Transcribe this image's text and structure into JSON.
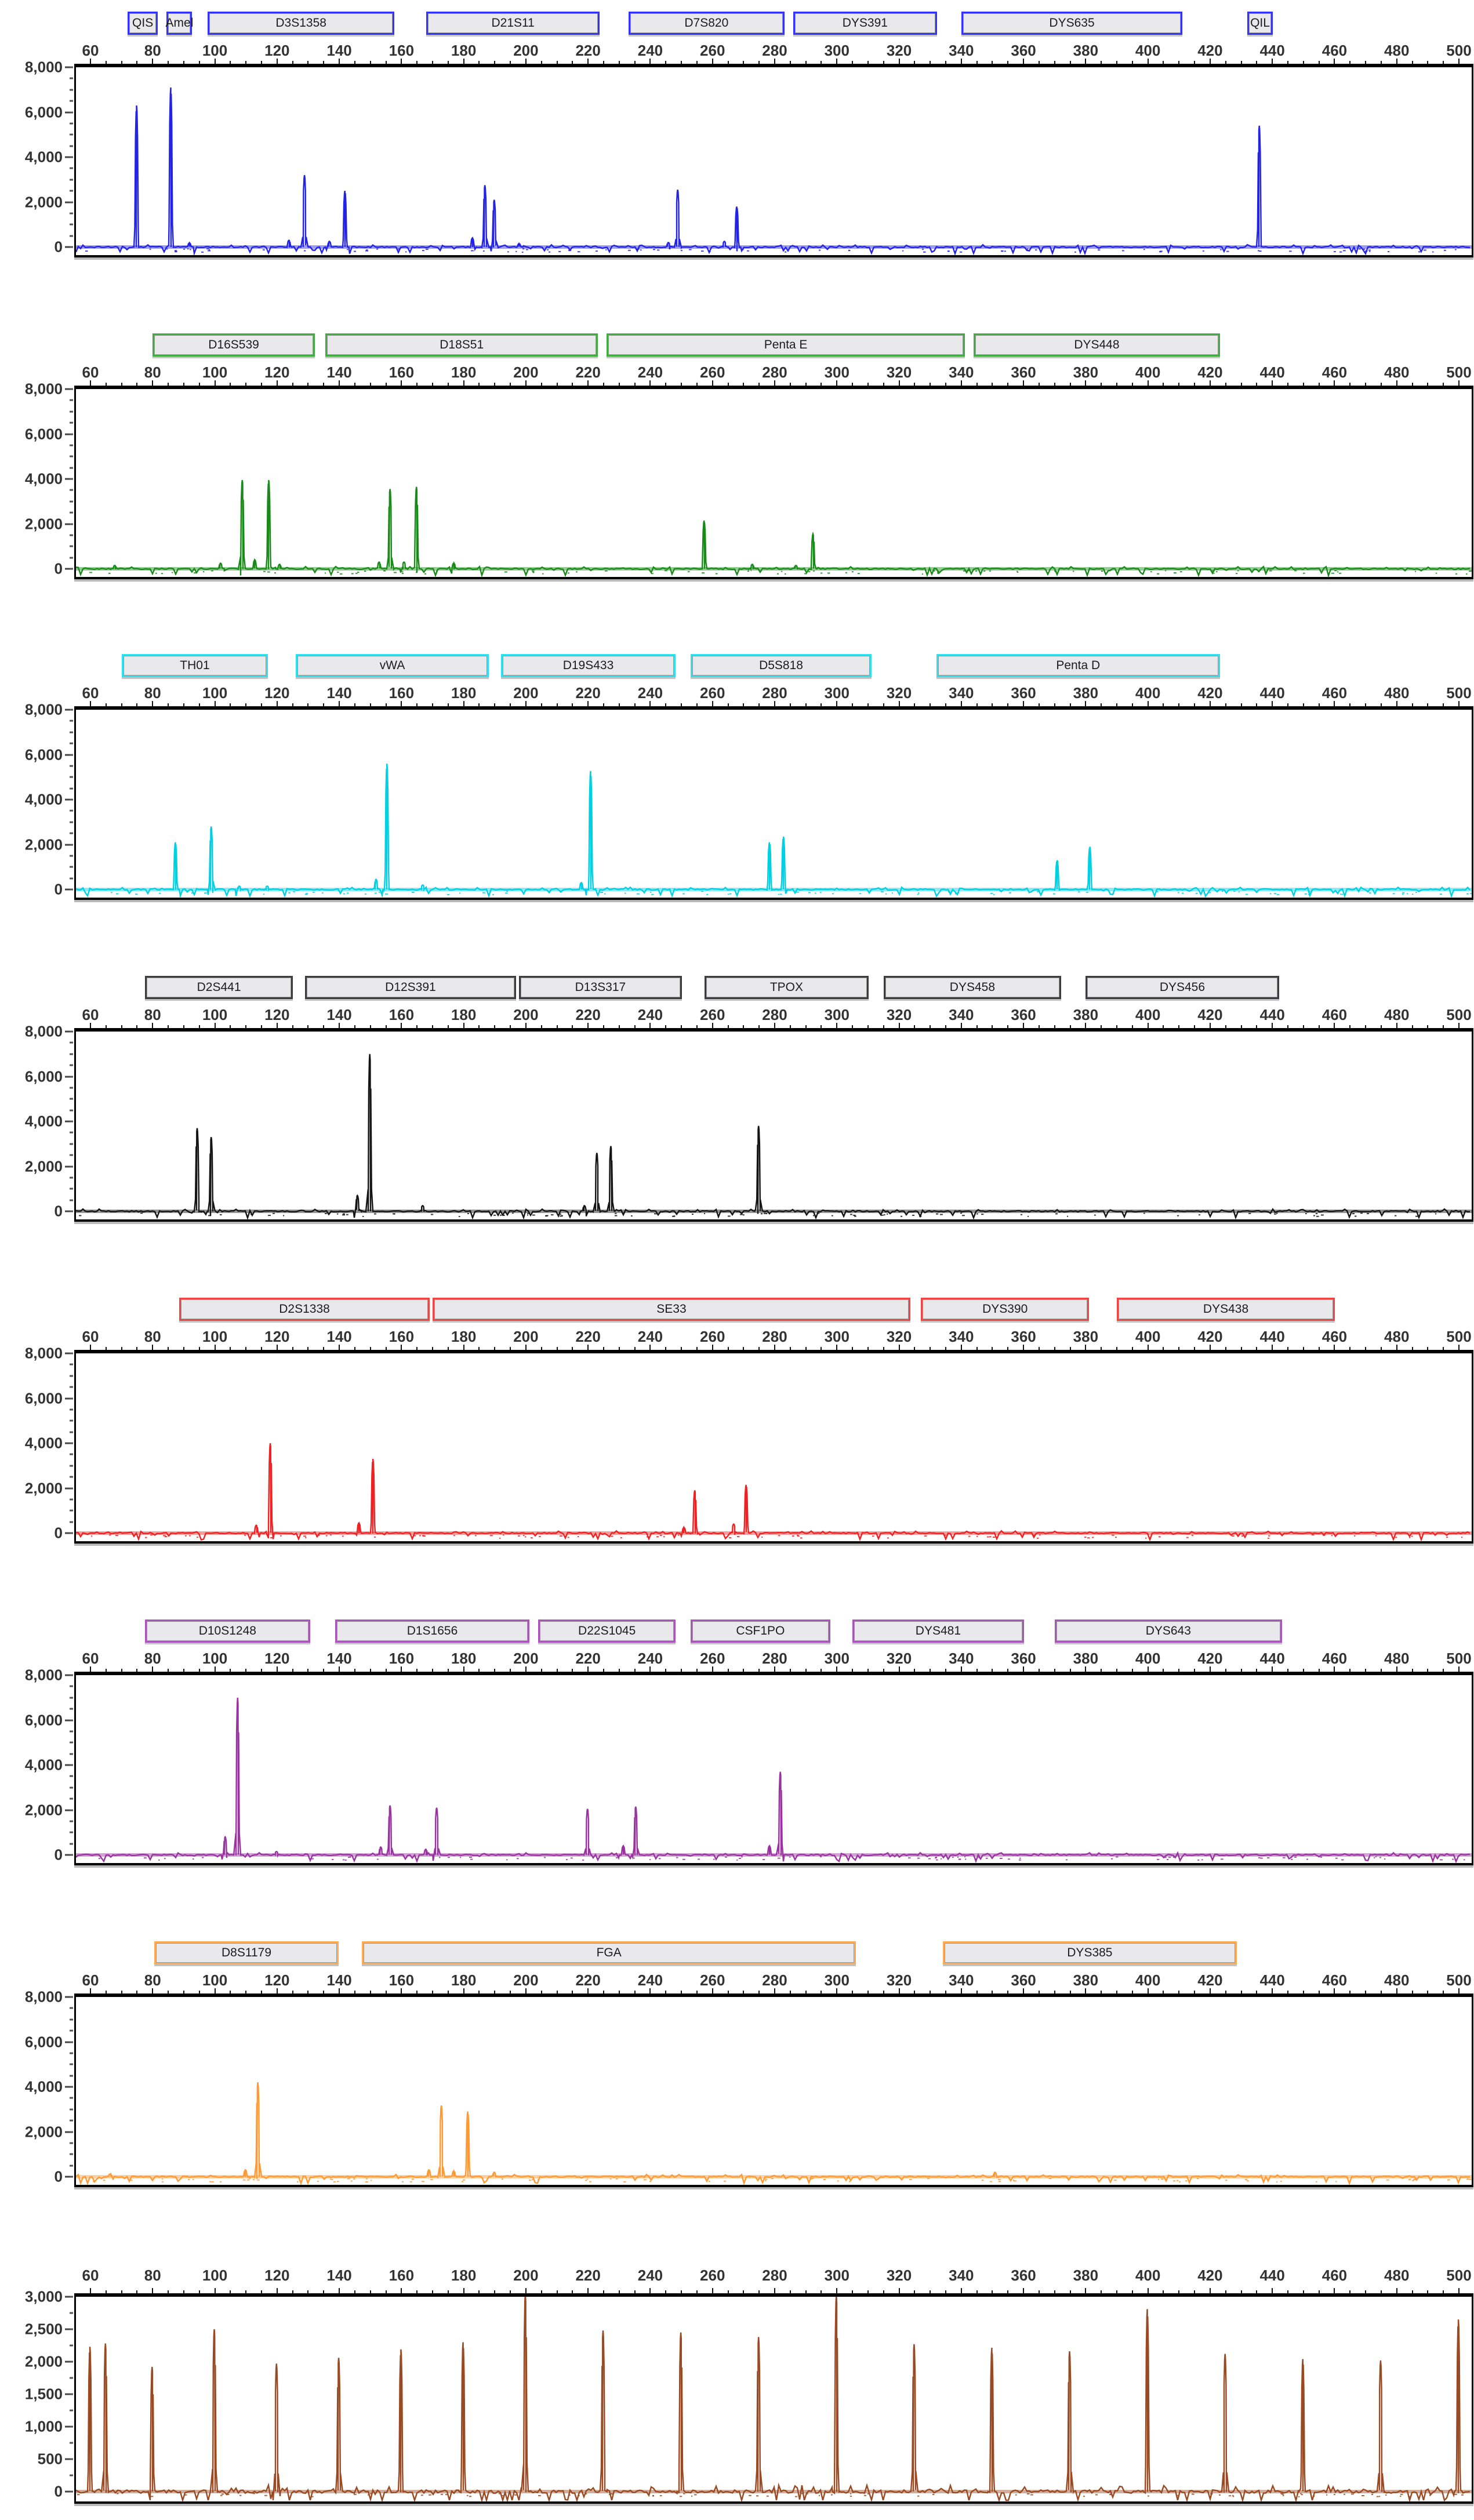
{
  "view": {
    "description": "Multi-channel STR electropherogram",
    "bp_start": 60,
    "bp_end": 500
  },
  "x_axis": {
    "tick_step": 20,
    "minor_step": 5,
    "ticks": [
      60,
      80,
      100,
      120,
      140,
      160,
      180,
      200,
      220,
      240,
      260,
      280,
      300,
      320,
      340,
      360,
      380,
      400,
      420,
      440,
      460,
      480,
      500
    ]
  },
  "chart_data": [
    {
      "type": "line",
      "name": "blue-channel",
      "trace_color": "#2323E6",
      "box_border": "#3333FF",
      "y_max": 8000,
      "y_minor_step": 500,
      "y_ticks": [
        {
          "label": "8,000",
          "value": 8000
        },
        {
          "label": "6,000",
          "value": 6000
        },
        {
          "label": "4,000",
          "value": 4000
        },
        {
          "label": "2,000",
          "value": 2000
        },
        {
          "label": "0",
          "value": 0
        }
      ],
      "markers": [
        {
          "label": "QIS",
          "start_bp": 72,
          "end_bp": 80.5
        },
        {
          "label": "Amel",
          "start_bp": 84.5,
          "end_bp": 91.6
        },
        {
          "label": "D3S1358",
          "start_bp": 97.7,
          "end_bp": 156.6
        },
        {
          "label": "D21S11",
          "start_bp": 168,
          "end_bp": 222.6
        },
        {
          "label": "D7S820",
          "start_bp": 233,
          "end_bp": 282
        },
        {
          "label": "DYS391",
          "start_bp": 286,
          "end_bp": 331
        },
        {
          "label": "DYS635",
          "start_bp": 340,
          "end_bp": 410
        },
        {
          "label": "QIL",
          "start_bp": 432,
          "end_bp": 439
        }
      ],
      "peaks": [
        [
          75,
          6300
        ],
        [
          86,
          7100
        ],
        [
          92,
          180
        ],
        [
          124,
          300
        ],
        [
          129,
          3200
        ],
        [
          137,
          250
        ],
        [
          142,
          2500
        ],
        [
          183,
          400
        ],
        [
          187,
          2750
        ],
        [
          190,
          2100
        ],
        [
          198,
          150
        ],
        [
          246,
          200
        ],
        [
          249,
          2550
        ],
        [
          264,
          250
        ],
        [
          268,
          1800
        ],
        [
          436,
          5400
        ]
      ]
    },
    {
      "type": "line",
      "name": "green-channel",
      "trace_color": "#178A17",
      "box_border": "#3FAE3F",
      "y_max": 8000,
      "y_minor_step": 500,
      "y_ticks": [
        {
          "label": "8,000",
          "value": 8000
        },
        {
          "label": "6,000",
          "value": 6000
        },
        {
          "label": "4,000",
          "value": 4000
        },
        {
          "label": "2,000",
          "value": 2000
        },
        {
          "label": "0",
          "value": 0
        }
      ],
      "markers": [
        {
          "label": "D16S539",
          "start_bp": 80,
          "end_bp": 131
        },
        {
          "label": "D18S51",
          "start_bp": 135.6,
          "end_bp": 222
        },
        {
          "label": "Penta E",
          "start_bp": 226,
          "end_bp": 340
        },
        {
          "label": "DYS448",
          "start_bp": 344,
          "end_bp": 422
        }
      ],
      "peaks": [
        [
          68,
          150
        ],
        [
          102,
          250
        ],
        [
          109,
          3950
        ],
        [
          113,
          400
        ],
        [
          117.5,
          3950
        ],
        [
          121,
          200
        ],
        [
          153,
          300
        ],
        [
          156.5,
          3550
        ],
        [
          161,
          300
        ],
        [
          165,
          3650
        ],
        [
          177,
          250
        ],
        [
          257.5,
          2150
        ],
        [
          273,
          200
        ],
        [
          287,
          150
        ],
        [
          292.5,
          1550
        ]
      ]
    },
    {
      "type": "line",
      "name": "cyan-channel",
      "trace_color": "#00D0E4",
      "box_border": "#2EE0F0",
      "y_max": 8000,
      "y_minor_step": 500,
      "y_ticks": [
        {
          "label": "8,000",
          "value": 8000
        },
        {
          "label": "6,000",
          "value": 6000
        },
        {
          "label": "4,000",
          "value": 4000
        },
        {
          "label": "2,000",
          "value": 2000
        },
        {
          "label": "0",
          "value": 0
        }
      ],
      "markers": [
        {
          "label": "TH01",
          "start_bp": 70,
          "end_bp": 116
        },
        {
          "label": "vWA",
          "start_bp": 126,
          "end_bp": 187
        },
        {
          "label": "D19S433",
          "start_bp": 192,
          "end_bp": 247
        },
        {
          "label": "D5S818",
          "start_bp": 253,
          "end_bp": 310
        },
        {
          "label": "Penta D",
          "start_bp": 332,
          "end_bp": 422
        }
      ],
      "peaks": [
        [
          87.5,
          2100
        ],
        [
          99,
          2800
        ],
        [
          108,
          150
        ],
        [
          117,
          150
        ],
        [
          152,
          450
        ],
        [
          155.5,
          5600
        ],
        [
          167,
          200
        ],
        [
          218,
          300
        ],
        [
          221,
          5270
        ],
        [
          278.5,
          2100
        ],
        [
          283,
          2350
        ],
        [
          371,
          1300
        ],
        [
          381.5,
          1900
        ]
      ]
    },
    {
      "type": "line",
      "name": "black-channel",
      "trace_color": "#141414",
      "box_border": "#3C3C3C",
      "y_max": 8000,
      "y_minor_step": 500,
      "y_ticks": [
        {
          "label": "8,000",
          "value": 8000
        },
        {
          "label": "6,000",
          "value": 6000
        },
        {
          "label": "4,000",
          "value": 4000
        },
        {
          "label": "2,000",
          "value": 2000
        },
        {
          "label": "0",
          "value": 0
        }
      ],
      "markers": [
        {
          "label": "D2S441",
          "start_bp": 77.5,
          "end_bp": 124
        },
        {
          "label": "D12S391",
          "start_bp": 129,
          "end_bp": 195.7
        },
        {
          "label": "D13S317",
          "start_bp": 197.8,
          "end_bp": 249
        },
        {
          "label": "TPOX",
          "start_bp": 257.5,
          "end_bp": 309
        },
        {
          "label": "DYS458",
          "start_bp": 315,
          "end_bp": 371
        },
        {
          "label": "DYS456",
          "start_bp": 380,
          "end_bp": 441
        }
      ],
      "peaks": [
        [
          94.5,
          3700
        ],
        [
          99,
          3300
        ],
        [
          146,
          700
        ],
        [
          150,
          7000
        ],
        [
          167,
          250
        ],
        [
          219,
          250
        ],
        [
          223,
          2600
        ],
        [
          227.5,
          2900
        ],
        [
          275,
          3800
        ]
      ]
    },
    {
      "type": "line",
      "name": "red-channel",
      "trace_color": "#EE2222",
      "box_border": "#F04545",
      "y_max": 8000,
      "y_minor_step": 500,
      "y_ticks": [
        {
          "label": "8,000",
          "value": 8000
        },
        {
          "label": "6,000",
          "value": 6000
        },
        {
          "label": "4,000",
          "value": 4000
        },
        {
          "label": "2,000",
          "value": 2000
        },
        {
          "label": "0",
          "value": 0
        }
      ],
      "markers": [
        {
          "label": "D2S1338",
          "start_bp": 88.5,
          "end_bp": 168
        },
        {
          "label": "SE33",
          "start_bp": 170,
          "end_bp": 322.5
        },
        {
          "label": "DYS390",
          "start_bp": 327,
          "end_bp": 380
        },
        {
          "label": "DYS438",
          "start_bp": 390,
          "end_bp": 459
        }
      ],
      "peaks": [
        [
          113.5,
          350
        ],
        [
          118,
          4000
        ],
        [
          146.5,
          450
        ],
        [
          151,
          3300
        ],
        [
          251,
          250
        ],
        [
          254.5,
          1900
        ],
        [
          267,
          400
        ],
        [
          271,
          2150
        ]
      ]
    },
    {
      "type": "line",
      "name": "purple-channel",
      "trace_color": "#9933A0",
      "box_border": "#AA55BB",
      "y_max": 8000,
      "y_minor_step": 500,
      "y_ticks": [
        {
          "label": "8,000",
          "value": 8000
        },
        {
          "label": "6,000",
          "value": 6000
        },
        {
          "label": "4,000",
          "value": 4000
        },
        {
          "label": "2,000",
          "value": 2000
        },
        {
          "label": "0",
          "value": 0
        }
      ],
      "markers": [
        {
          "label": "D10S1248",
          "start_bp": 77.5,
          "end_bp": 129.5
        },
        {
          "label": "D1S1656",
          "start_bp": 138.7,
          "end_bp": 200
        },
        {
          "label": "D22S1045",
          "start_bp": 204,
          "end_bp": 247
        },
        {
          "label": "CSF1PO",
          "start_bp": 253,
          "end_bp": 296.7
        },
        {
          "label": "DYS481",
          "start_bp": 305,
          "end_bp": 359
        },
        {
          "label": "DYS643",
          "start_bp": 370,
          "end_bp": 442
        }
      ],
      "peaks": [
        [
          103.5,
          800
        ],
        [
          107.5,
          7000
        ],
        [
          120,
          150
        ],
        [
          153.5,
          350
        ],
        [
          156.5,
          2200
        ],
        [
          168,
          250
        ],
        [
          171.5,
          2100
        ],
        [
          220,
          2050
        ],
        [
          231.5,
          400
        ],
        [
          235.5,
          2150
        ],
        [
          278.5,
          400
        ],
        [
          282,
          3700
        ]
      ]
    },
    {
      "type": "line",
      "name": "orange-channel",
      "trace_color": "#FF9933",
      "box_border": "#FFAA55",
      "y_max": 8000,
      "y_minor_step": 500,
      "y_ticks": [
        {
          "label": "8,000",
          "value": 8000
        },
        {
          "label": "6,000",
          "value": 6000
        },
        {
          "label": "4,000",
          "value": 4000
        },
        {
          "label": "2,000",
          "value": 2000
        },
        {
          "label": "0",
          "value": 0
        }
      ],
      "markers": [
        {
          "label": "D8S1179",
          "start_bp": 80.5,
          "end_bp": 138.7
        },
        {
          "label": "FGA",
          "start_bp": 147.3,
          "end_bp": 305
        },
        {
          "label": "DYS385",
          "start_bp": 334,
          "end_bp": 427.5
        }
      ],
      "peaks": [
        [
          66.5,
          120
        ],
        [
          110,
          300
        ],
        [
          114,
          4200
        ],
        [
          169,
          300
        ],
        [
          173,
          3170
        ],
        [
          177,
          250
        ],
        [
          181.5,
          2900
        ],
        [
          190,
          200
        ],
        [
          351,
          200
        ]
      ]
    },
    {
      "type": "line",
      "name": "size-standard-channel",
      "trace_color": "#994A22",
      "box_border": "#B06030",
      "y_max": 3000,
      "y_minor_step": 250,
      "y_ticks": [
        {
          "label": "3,000",
          "value": 3000
        },
        {
          "label": "2,500",
          "value": 2500
        },
        {
          "label": "2,000",
          "value": 2000
        },
        {
          "label": "1,500",
          "value": 1500
        },
        {
          "label": "1,000",
          "value": 1000
        },
        {
          "label": "500",
          "value": 500
        },
        {
          "label": "0",
          "value": 0
        }
      ],
      "markers": [],
      "peaks": [
        [
          60,
          2230
        ],
        [
          65,
          2280
        ],
        [
          80,
          1920
        ],
        [
          100,
          2500
        ],
        [
          120,
          1970
        ],
        [
          140,
          2060
        ],
        [
          160,
          2190
        ],
        [
          180,
          2300
        ],
        [
          200,
          3050
        ],
        [
          225,
          2480
        ],
        [
          250,
          2450
        ],
        [
          275,
          2380
        ],
        [
          300,
          3030
        ],
        [
          325,
          2270
        ],
        [
          350,
          2215
        ],
        [
          375,
          2160
        ],
        [
          400,
          2810
        ],
        [
          425,
          2120
        ],
        [
          450,
          2040
        ],
        [
          475,
          2020
        ],
        [
          500,
          2650
        ]
      ]
    }
  ]
}
